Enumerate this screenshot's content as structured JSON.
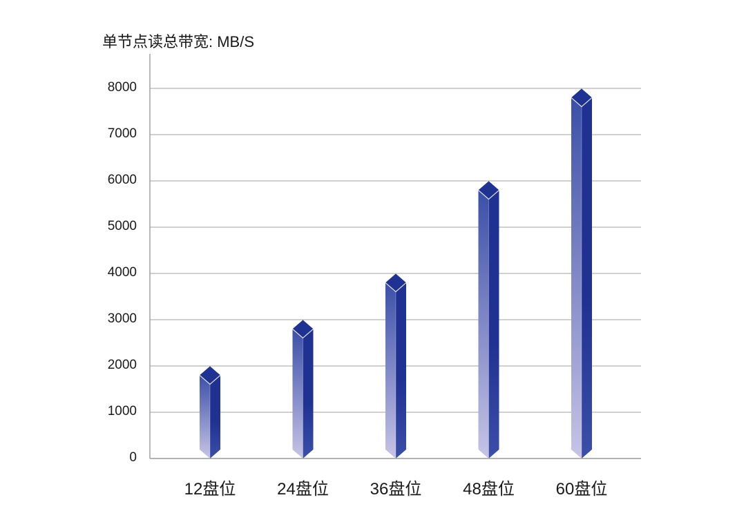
{
  "chart_data": {
    "type": "bar",
    "ylabel": "单节点读总带宽: MB/S",
    "categories": [
      "12盘位",
      "24盘位",
      "36盘位",
      "48盘位",
      "60盘位"
    ],
    "values": [
      1800,
      2800,
      3800,
      5800,
      7800
    ],
    "ylim": [
      0,
      8000
    ],
    "yticks": [
      0,
      1000,
      2000,
      3000,
      4000,
      5000,
      6000,
      7000,
      8000
    ],
    "grid": true,
    "colors": {
      "bar_dark": "#1f3191",
      "bar_mid": "#3b4fa8",
      "bar_light": "#c7c4e6",
      "grid": "#b5b5b5",
      "axis": "#9a9a9a"
    }
  }
}
